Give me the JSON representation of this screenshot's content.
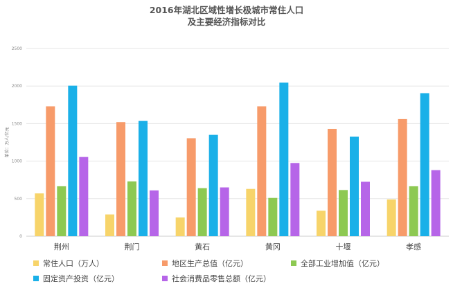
{
  "chart_data": {
    "type": "bar",
    "title": [
      "2016年湖北区域性增长极城市常住人口",
      "及主要经济指标对比"
    ],
    "ylabel": "单位：万人/亿元",
    "ylim": [
      0,
      2500
    ],
    "yticks": [
      0,
      500,
      1000,
      1500,
      2000,
      2500
    ],
    "grid": true,
    "legend_position": "bottom",
    "categories": [
      "荆州",
      "荆门",
      "黄石",
      "黄冈",
      "十堰",
      "孝感"
    ],
    "series": [
      {
        "name": "常住人口（万人）",
        "color": "#F7D46A",
        "values": [
          570,
          290,
          250,
          630,
          340,
          490
        ]
      },
      {
        "name": "地区生产总值（亿元）",
        "color": "#F79B6A",
        "values": [
          1730,
          1520,
          1305,
          1730,
          1430,
          1560
        ]
      },
      {
        "name": "全部工业增加值（亿元）",
        "color": "#8DC952",
        "values": [
          665,
          730,
          640,
          510,
          615,
          665
        ]
      },
      {
        "name": "固定资产投资（亿元）",
        "color": "#1AB0E8",
        "values": [
          2005,
          1535,
          1350,
          2045,
          1325,
          1905
        ]
      },
      {
        "name": "社会消费品零售总额（亿元）",
        "color": "#B665E8",
        "values": [
          1055,
          610,
          650,
          975,
          725,
          880
        ]
      }
    ]
  }
}
